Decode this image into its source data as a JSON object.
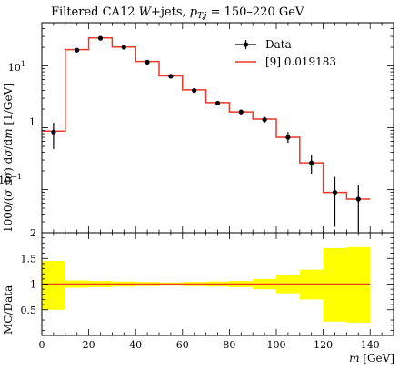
{
  "chart_data": [
    {
      "type": "line",
      "title": "Filtered CA12 W+jets, p_{T,j} = 150–220 GeV",
      "title_parts": {
        "prefix": "Filtered CA12 ",
        "w": "W",
        "suffix": "+jets, ",
        "pt": "p",
        "pt_sub": "T,j",
        "range": " = 150–220 GeV"
      },
      "ylabel": "1000/(σ dσ) dσ/dm [1/GeV]",
      "ylabel_parts": {
        "num": "1000/(",
        "sigma": "σ",
        "mid": " d",
        "sigma2": "σ",
        "close": ")",
        "d": " d",
        "sigma3": "σ",
        "slash": "/d",
        "m": "m",
        "unit": " [1/GeV]"
      },
      "yscale": "log",
      "ylim": [
        0.02,
        50
      ],
      "xlim": [
        0,
        150
      ],
      "grid": false,
      "legend": {
        "placement": "top-right",
        "entries": [
          {
            "label": "Data",
            "style": "points-with-error-bars",
            "color": "#000000"
          },
          {
            "label": "[9] 0.019183",
            "style": "step-line",
            "color": "#e8392a"
          }
        ]
      },
      "ytick_labels": [
        {
          "value": 10,
          "base": "10",
          "exp": "1"
        },
        {
          "value": 1,
          "base": "1",
          "exp": ""
        },
        {
          "value": 0.1,
          "base": "10",
          "exp": "−1"
        }
      ],
      "bin_edges": [
        0,
        10,
        20,
        30,
        40,
        50,
        60,
        70,
        80,
        90,
        100,
        110,
        120,
        130,
        140
      ],
      "series": [
        {
          "name": "Data",
          "x": [
            5,
            15,
            25,
            35,
            45,
            55,
            65,
            75,
            85,
            95,
            105,
            115,
            125,
            135
          ],
          "values": [
            0.85,
            18,
            28,
            20,
            11.5,
            6.8,
            4.0,
            2.5,
            1.8,
            1.35,
            0.7,
            0.27,
            0.09,
            0.07
          ],
          "err_low": [
            0.45,
            16.8,
            26.5,
            19,
            11,
            6.5,
            3.8,
            2.35,
            1.65,
            1.2,
            0.57,
            0.18,
            0.025,
            0.021
          ],
          "err_high": [
            1.2,
            19.5,
            30,
            21,
            12,
            7.1,
            4.3,
            2.65,
            1.95,
            1.5,
            0.85,
            0.36,
            0.16,
            0.12
          ]
        },
        {
          "name": "[9] 0.019183",
          "values": [
            0.88,
            18.3,
            28.3,
            20.2,
            11.8,
            6.9,
            4.1,
            2.55,
            1.8,
            1.38,
            0.7,
            0.27,
            0.09,
            0.07
          ]
        }
      ]
    },
    {
      "type": "area",
      "xlabel": "m [GeV]",
      "xlabel_parts": {
        "m": "m",
        "unit": " [GeV]"
      },
      "ylabel": "MC/Data",
      "xlim": [
        0,
        150
      ],
      "ylim": [
        0,
        2
      ],
      "x_ticks": [
        0,
        20,
        40,
        60,
        80,
        100,
        120,
        140
      ],
      "y_ticks": [
        0.5,
        1,
        1.5,
        2
      ],
      "y_tick_labels": [
        "0.5",
        "1",
        "1.5",
        "2"
      ],
      "bin_edges": [
        0,
        10,
        20,
        30,
        40,
        50,
        60,
        70,
        80,
        90,
        100,
        110,
        120,
        130,
        140
      ],
      "ratio": [
        1.0,
        1.0,
        1.0,
        1.0,
        1.0,
        1.0,
        1.0,
        1.0,
        1.0,
        1.0,
        1.0,
        1.0,
        1.0,
        1.0
      ],
      "band_low": [
        0.5,
        0.93,
        0.94,
        0.95,
        0.96,
        0.97,
        0.96,
        0.95,
        0.94,
        0.9,
        0.82,
        0.7,
        0.27,
        0.25
      ],
      "band_high": [
        1.45,
        1.07,
        1.06,
        1.05,
        1.04,
        1.03,
        1.04,
        1.05,
        1.06,
        1.1,
        1.18,
        1.28,
        1.7,
        1.72
      ],
      "band_color": "#ffff00",
      "line_color": "#e8392a"
    }
  ]
}
